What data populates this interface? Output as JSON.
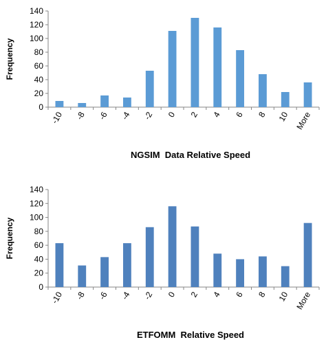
{
  "chart_data": [
    {
      "type": "bar",
      "categories": [
        "-10",
        "-8",
        "-6",
        "-4",
        "-2",
        "0",
        "2",
        "4",
        "6",
        "8",
        "10",
        "More"
      ],
      "values": [
        9,
        6,
        17,
        14,
        53,
        111,
        130,
        116,
        83,
        48,
        22,
        36
      ],
      "xlabel": "NGSIM  Data Relative Speed",
      "ylabel": "Frequency",
      "ylim": [
        0,
        140
      ],
      "yticks": [
        0,
        20,
        40,
        60,
        80,
        100,
        120,
        140
      ],
      "bar_color": "#5b9bd5",
      "grid": false
    },
    {
      "type": "bar",
      "categories": [
        "-10",
        "-8",
        "-6",
        "-4",
        "-2",
        "0",
        "2",
        "4",
        "6",
        "8",
        "10",
        "More"
      ],
      "values": [
        63,
        31,
        43,
        63,
        86,
        116,
        87,
        48,
        40,
        44,
        30,
        92
      ],
      "xlabel": "ETFOMM  Relative Speed",
      "ylabel": "Frequency",
      "ylim": [
        0,
        140
      ],
      "yticks": [
        0,
        20,
        40,
        60,
        80,
        100,
        120,
        140
      ],
      "bar_color": "#4f81bd",
      "grid": false
    }
  ]
}
